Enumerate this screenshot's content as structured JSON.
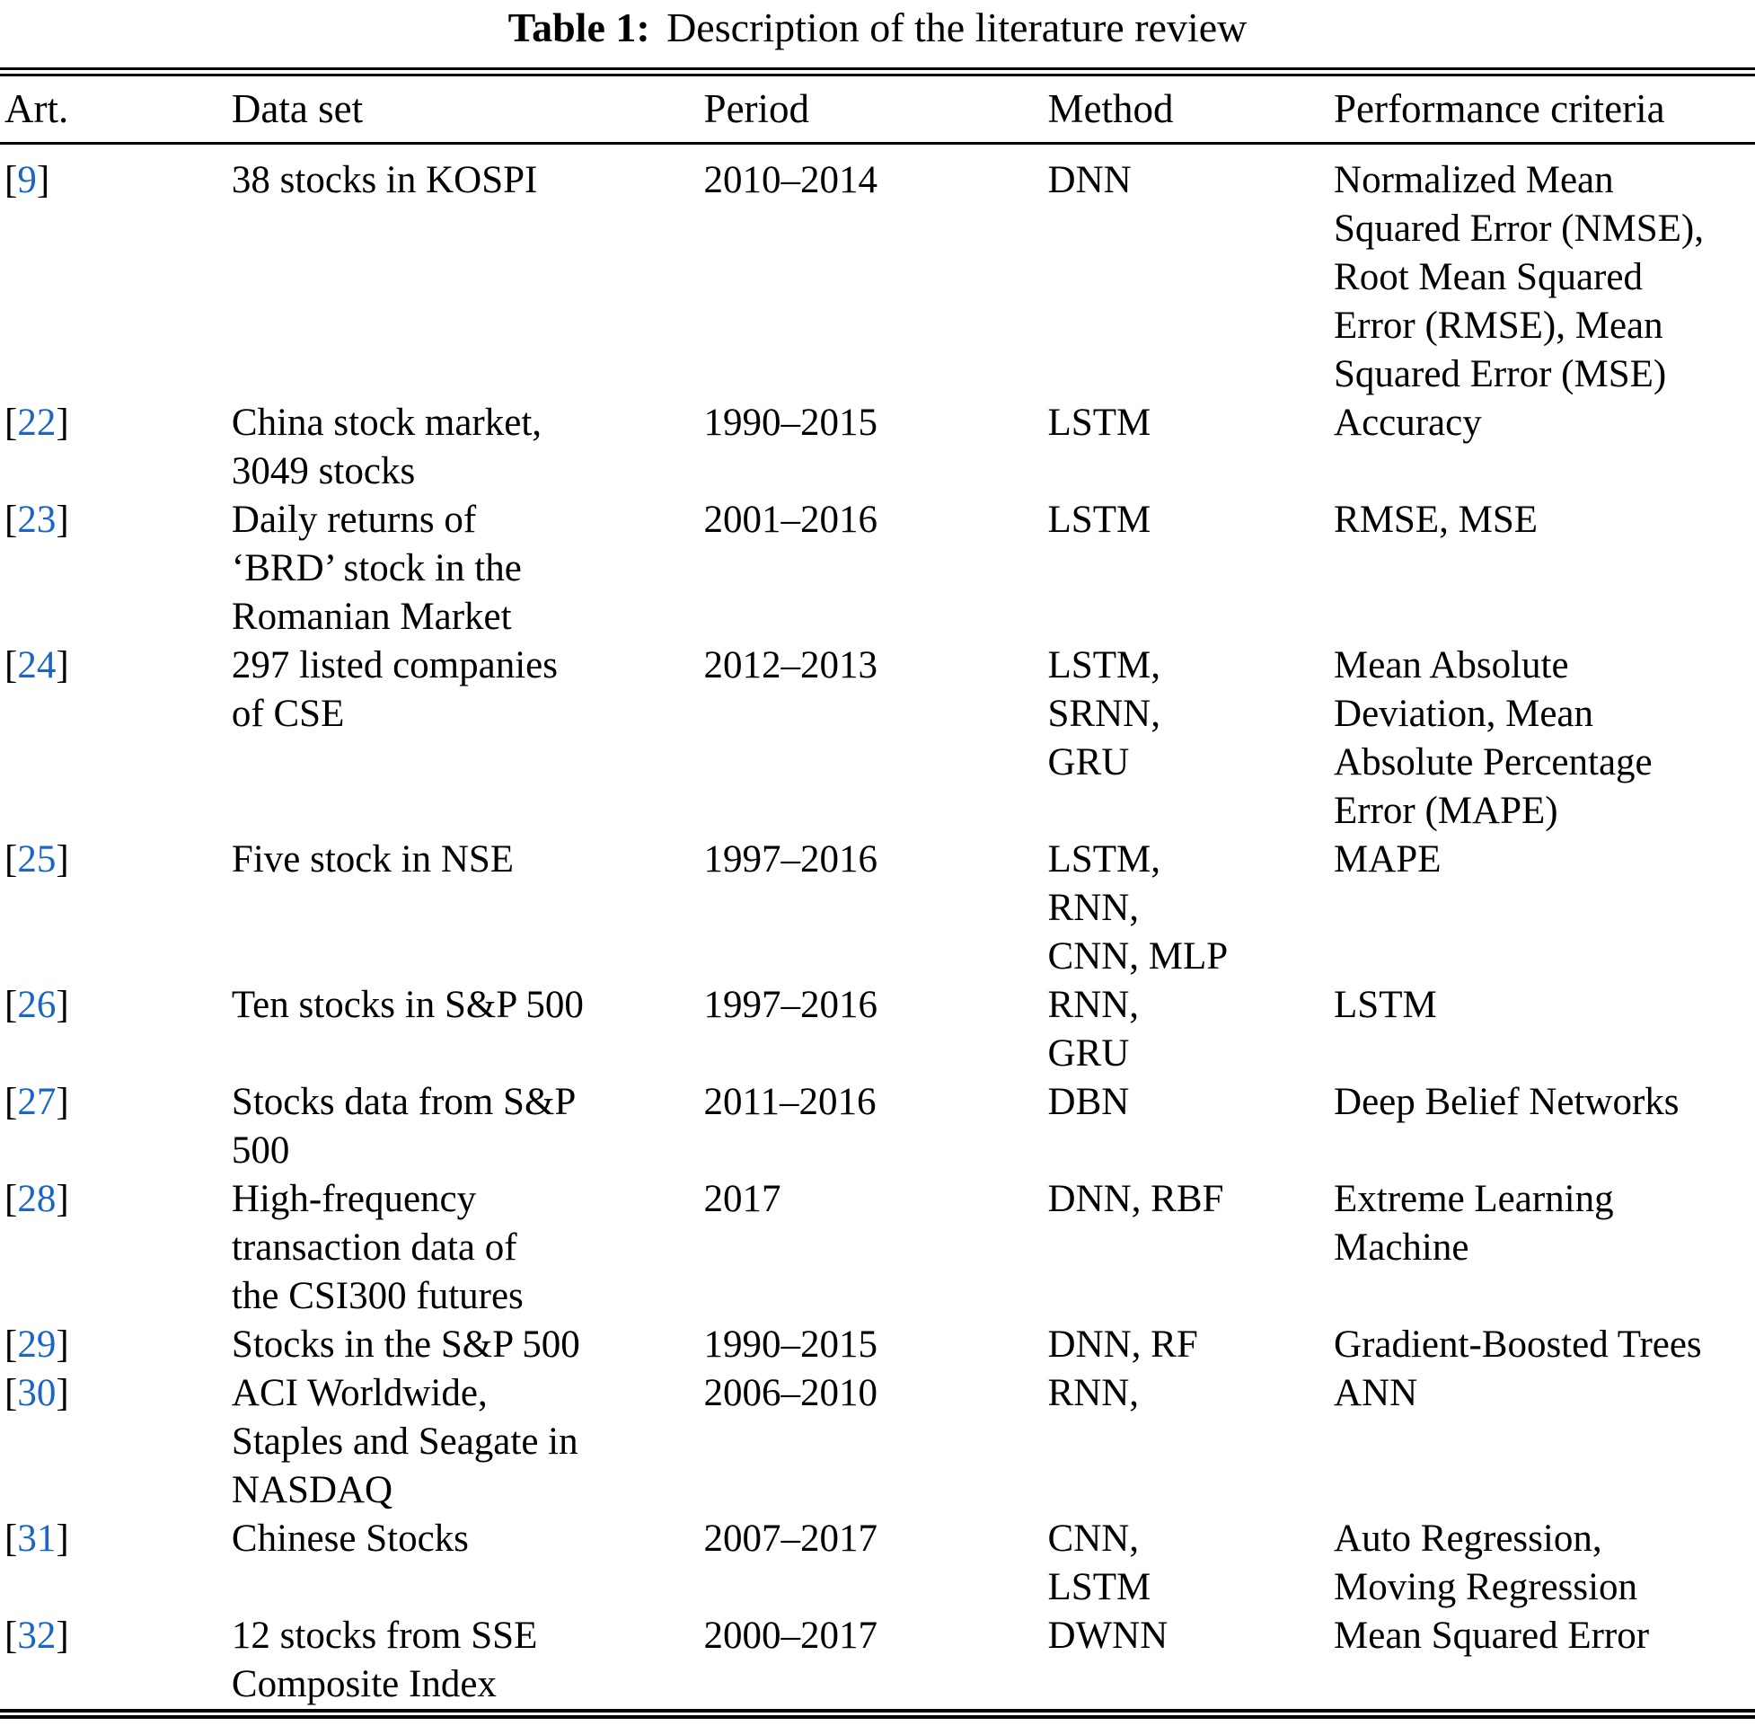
{
  "caption": {
    "label": "Table 1:",
    "text": "Description of the literature review"
  },
  "colors": {
    "citation_blue": "#1b66c4",
    "text": "#000000"
  },
  "table": {
    "columns": [
      {
        "key": "art",
        "label": "Art."
      },
      {
        "key": "dataset",
        "label": "Data set"
      },
      {
        "key": "period",
        "label": "Period"
      },
      {
        "key": "method",
        "label": "Method"
      },
      {
        "key": "performance",
        "label": "Performance criteria"
      }
    ],
    "rows": [
      {
        "art": "9",
        "data_set": [
          "38 stocks in KOSPI"
        ],
        "period": "2010–2014",
        "method": [
          "DNN"
        ],
        "performance": [
          "Normalized Mean",
          "Squared Error (NMSE),",
          "Root Mean Squared",
          "Error (RMSE), Mean",
          "Squared Error (MSE)"
        ]
      },
      {
        "art": "22",
        "data_set": [
          "China stock market,",
          "3049 stocks"
        ],
        "period": "1990–2015",
        "method": [
          "LSTM"
        ],
        "performance": [
          "Accuracy"
        ]
      },
      {
        "art": "23",
        "data_set": [
          "Daily returns of",
          "‘BRD’ stock in the",
          "Romanian Market"
        ],
        "period": "2001–2016",
        "method": [
          "LSTM"
        ],
        "performance": [
          "RMSE, MSE"
        ]
      },
      {
        "art": "24",
        "data_set": [
          "297 listed companies",
          "of CSE"
        ],
        "period": "2012–2013",
        "method": [
          "LSTM,",
          "SRNN,",
          "GRU"
        ],
        "performance": [
          "Mean Absolute",
          "Deviation, Mean",
          "Absolute Percentage",
          "Error (MAPE)"
        ]
      },
      {
        "art": "25",
        "data_set": [
          "Five stock in NSE"
        ],
        "period": "1997–2016",
        "method": [
          "LSTM,",
          "RNN,",
          "CNN, MLP"
        ],
        "performance": [
          "MAPE"
        ]
      },
      {
        "art": "26",
        "data_set": [
          "Ten stocks in S&P 500"
        ],
        "period": "1997–2016",
        "method": [
          "RNN,",
          "GRU"
        ],
        "performance": [
          "LSTM"
        ]
      },
      {
        "art": "27",
        "data_set": [
          "Stocks data from S&P",
          "500"
        ],
        "period": "2011–2016",
        "method": [
          "DBN"
        ],
        "performance": [
          "Deep Belief Networks"
        ]
      },
      {
        "art": "28",
        "data_set": [
          "High-frequency",
          "transaction data of",
          "the CSI300 futures"
        ],
        "period": "2017",
        "method": [
          "DNN, RBF"
        ],
        "performance": [
          "Extreme Learning",
          "Machine"
        ]
      },
      {
        "art": "29",
        "data_set": [
          "Stocks in the S&P 500"
        ],
        "period": "1990–2015",
        "method": [
          "DNN, RF"
        ],
        "performance": [
          "Gradient-Boosted Trees"
        ]
      },
      {
        "art": "30",
        "data_set": [
          "ACI Worldwide,",
          "Staples and Seagate in",
          "NASDAQ"
        ],
        "period": "2006–2010",
        "method": [
          "RNN,"
        ],
        "performance": [
          "ANN"
        ]
      },
      {
        "art": "31",
        "data_set": [
          "Chinese Stocks"
        ],
        "period": "2007–2017",
        "method": [
          "CNN,",
          "LSTM"
        ],
        "performance": [
          "Auto Regression,",
          "Moving Regression"
        ]
      },
      {
        "art": "32",
        "data_set": [
          "12 stocks from SSE",
          "Composite Index"
        ],
        "period": "2000–2017",
        "method": [
          "DWNN"
        ],
        "performance": [
          "Mean Squared Error"
        ]
      }
    ]
  }
}
